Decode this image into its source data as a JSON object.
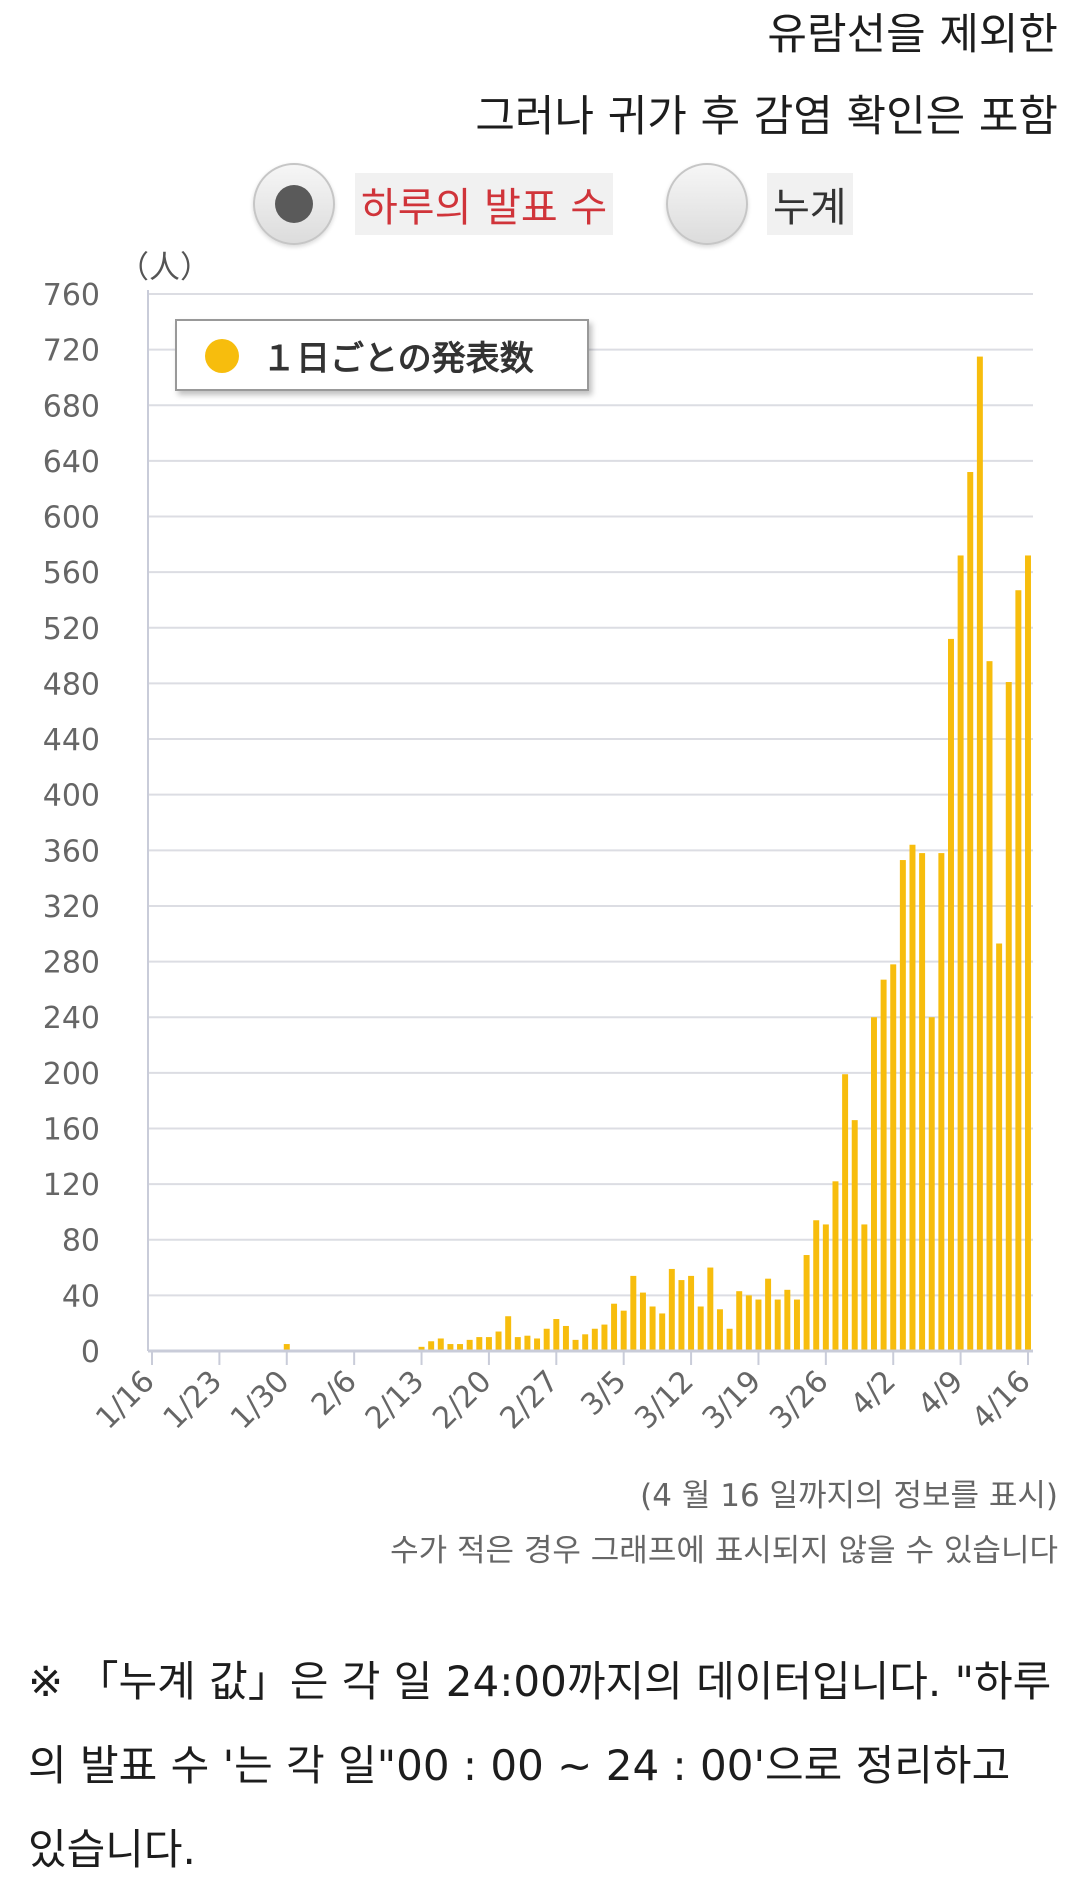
{
  "header": {
    "line1": "유람선을 제외한",
    "line2": "그러나 귀가 후 감염 확인은 포함"
  },
  "toggle": {
    "daily_label": "하루의 발표 수",
    "cumulative_label": "누계",
    "selected": "daily"
  },
  "colors": {
    "bar": "#f7bd0d",
    "grid": "#dcdde3",
    "axis": "#c9ccd9",
    "selected_label": "#d0343a"
  },
  "chart_data": {
    "type": "bar",
    "unit_label": "（人）",
    "legend": "１日ごとの発表数",
    "legend_position": "top-left",
    "grid": true,
    "ylim": [
      0,
      760
    ],
    "yticks": [
      0,
      40,
      80,
      120,
      160,
      200,
      240,
      280,
      320,
      360,
      400,
      440,
      480,
      520,
      560,
      600,
      640,
      680,
      720,
      760
    ],
    "xticks": [
      "1/16",
      "1/23",
      "1/30",
      "2/6",
      "2/13",
      "2/20",
      "2/27",
      "3/5",
      "3/12",
      "3/19",
      "3/26",
      "4/2",
      "4/9",
      "4/16"
    ],
    "first_date": "1/16",
    "last_date": "4/16",
    "values": [
      1,
      0,
      0,
      1,
      0,
      0,
      0,
      0,
      0,
      0,
      0,
      0,
      0,
      0,
      5,
      0,
      0,
      1,
      0,
      0,
      0,
      0,
      0,
      0,
      0,
      0,
      0,
      0,
      3,
      7,
      9,
      5,
      5,
      8,
      10,
      10,
      14,
      25,
      10,
      11,
      9,
      16,
      23,
      18,
      8,
      12,
      16,
      19,
      34,
      29,
      54,
      42,
      32,
      27,
      59,
      51,
      54,
      32,
      60,
      30,
      16,
      43,
      40,
      37,
      52,
      37,
      44,
      37,
      69,
      94,
      91,
      122,
      199,
      166,
      91,
      240,
      267,
      278,
      353,
      364,
      358,
      240,
      358,
      512,
      572,
      632,
      715,
      496,
      293,
      481,
      547,
      572
    ]
  },
  "notes": {
    "range_note": "(4 월 16 일까지의 정보를 표시)",
    "small_note": "수가 적은 경우 그래프에 표시되지 않을 수 있습니다",
    "footnote": "※ 「누계 값」은 각 일 24:00까지의 데이터입니다. \"하루의 발표 수 '는 각 일\"00 : 00 ~ 24 : 00'으로 정리하고 있습니다."
  }
}
